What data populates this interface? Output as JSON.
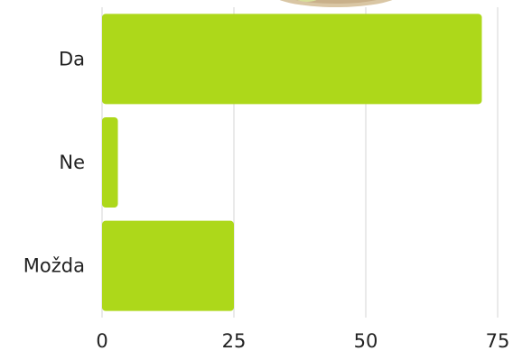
{
  "chart_data": {
    "type": "bar",
    "orientation": "horizontal",
    "categories": [
      "Da",
      "Ne",
      "Možda"
    ],
    "values": [
      72,
      3,
      25
    ],
    "xlim": [
      0,
      75
    ],
    "xticks": [
      0,
      25,
      50,
      75
    ],
    "grid": true,
    "title": "",
    "xlabel": "",
    "ylabel": "",
    "colors": {
      "bar": "#add81a"
    }
  }
}
